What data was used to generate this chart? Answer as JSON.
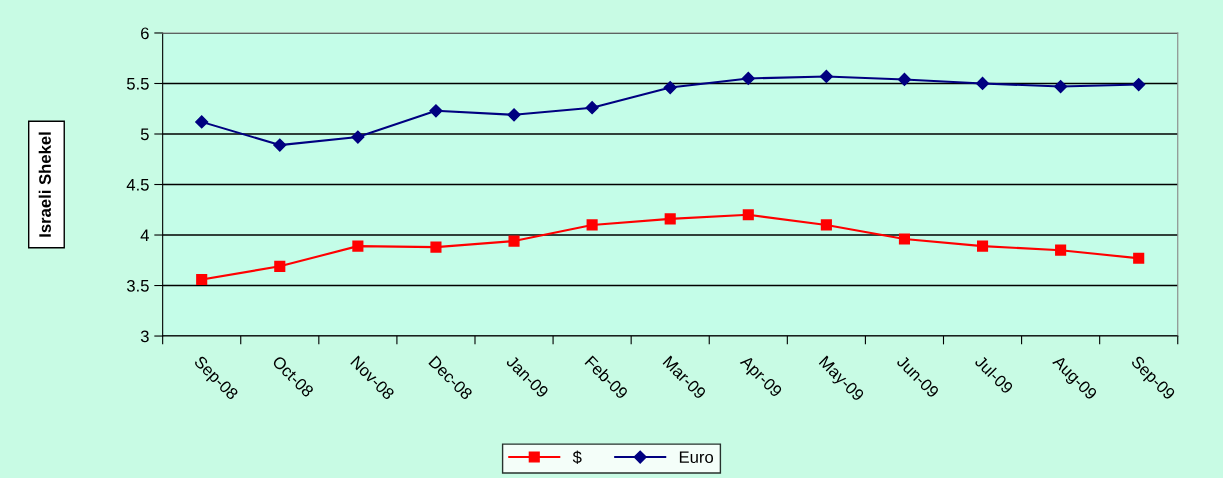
{
  "chart_data": {
    "type": "line",
    "ylabel": "Israeli Shekel",
    "categories": [
      "Sep-08",
      "Oct-08",
      "Nov-08",
      "Dec-08",
      "Jan-09",
      "Feb-09",
      "Mar-09",
      "Apr-09",
      "May-09",
      "Jun-09",
      "Jul-09",
      "Aug-09",
      "Sep-09"
    ],
    "series": [
      {
        "name": "$",
        "color": "#ff0000",
        "marker": "square",
        "values": [
          3.56,
          3.69,
          3.89,
          3.88,
          3.94,
          4.1,
          4.16,
          4.2,
          4.1,
          3.96,
          3.89,
          3.85,
          3.77
        ]
      },
      {
        "name": "Euro",
        "color": "#000080",
        "marker": "diamond",
        "values": [
          5.12,
          4.89,
          4.97,
          5.23,
          5.19,
          5.26,
          5.46,
          5.55,
          5.57,
          5.54,
          5.5,
          5.47,
          5.49
        ]
      }
    ],
    "ylim": [
      3,
      6
    ],
    "yticks": [
      3,
      3.5,
      4,
      4.5,
      5,
      5.5,
      6
    ],
    "grid": "y",
    "legend": "bottom",
    "line_style": "solid"
  }
}
